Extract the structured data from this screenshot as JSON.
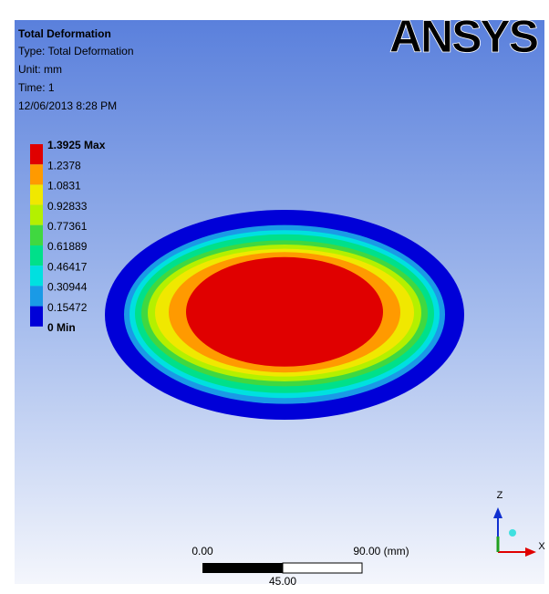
{
  "header": {
    "title": "Total Deformation",
    "type": "Type: Total Deformation",
    "unit": "Unit: mm",
    "time": "Time: 1",
    "date": "12/06/2013 8:28 PM"
  },
  "logo": "ANSYS",
  "legend": [
    {
      "label": "1.3925 Max",
      "color": "#e00000"
    },
    {
      "label": "1.2378",
      "color": "#ff9a00"
    },
    {
      "label": "1.0831",
      "color": "#f0e800"
    },
    {
      "label": "0.92833",
      "color": "#b4f000"
    },
    {
      "label": "0.77361",
      "color": "#40d840"
    },
    {
      "label": "0.61889",
      "color": "#00e08a"
    },
    {
      "label": "0.46417",
      "color": "#00e0e0"
    },
    {
      "label": "0.30944",
      "color": "#1a9ae6"
    },
    {
      "label": "0.15472",
      "color": "#0000d8"
    },
    {
      "label": "0 Min"
    }
  ],
  "scale_bar": {
    "start": "0.00",
    "end": "90.00 (mm)",
    "middle": "45.00"
  },
  "triad": {
    "z": "Z",
    "x": "X"
  }
}
